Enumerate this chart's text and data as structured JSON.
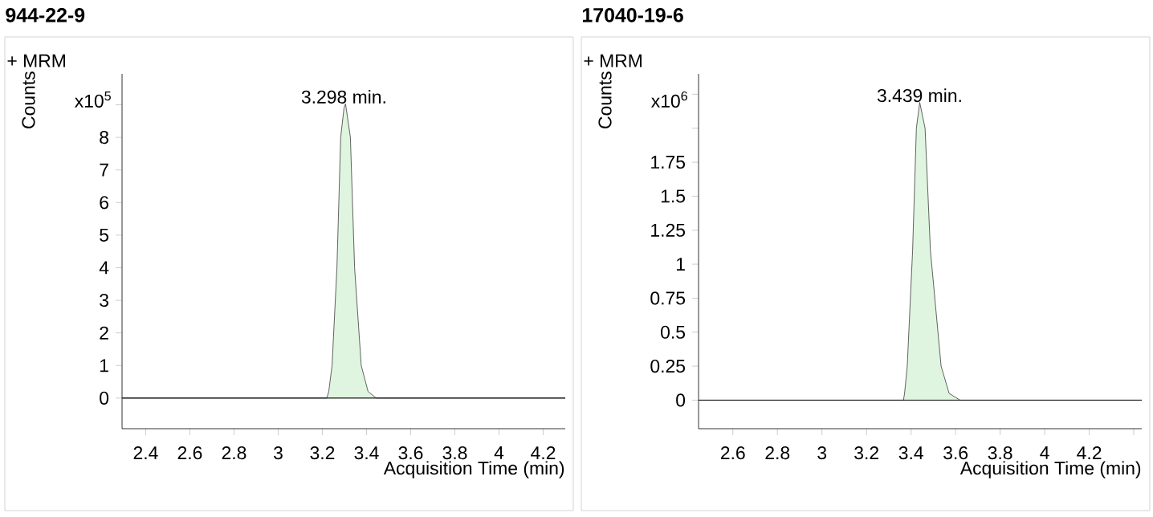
{
  "chart_data": [
    {
      "type": "area",
      "title": "944-22-9",
      "xlabel": "Acquisition Time (min)",
      "ylabel": "Counts",
      "color": "#dff5df",
      "x": [
        2.293,
        3.22,
        3.229,
        3.244,
        3.266,
        3.283,
        3.298,
        3.305,
        3.327,
        3.346,
        3.376,
        3.407,
        3.444,
        4.3
      ],
      "values": [
        0,
        0,
        0.2,
        1,
        4,
        8,
        8.9,
        9.03,
        8,
        4,
        1,
        0.2,
        0,
        0
      ],
      "xlim": [
        2.293,
        4.3
      ],
      "ylim": [
        -0.94,
        9.95
      ],
      "xticks": [
        2.4,
        2.6,
        2.8,
        3,
        3.2,
        3.4,
        3.6,
        3.8,
        4,
        4.2
      ],
      "yticks": [
        0,
        1,
        2,
        3,
        4,
        5,
        6,
        7,
        8,
        {
          "value": 9,
          "label": null
        }
      ],
      "annotations": [
        "+ MRM",
        "x10$^{5}$",
        {
          "text": "3.298 min.",
          "x": 3.298,
          "y": 9.03
        }
      ]
    },
    {
      "type": "area",
      "title": "17040-19-6",
      "xlabel": "Acquisition Time (min)",
      "ylabel": "Counts",
      "color": "#dff5df",
      "x": [
        2.446,
        3.366,
        3.371,
        3.383,
        3.407,
        3.424,
        3.439,
        3.463,
        3.487,
        3.535,
        3.571,
        3.62,
        4.436
      ],
      "values": [
        0,
        0,
        0.05,
        0.25,
        1.1,
        2,
        2.19,
        2,
        1.1,
        0.25,
        0.05,
        0,
        0
      ],
      "xlim": [
        2.446,
        4.436
      ],
      "ylim": [
        -0.21,
        2.4
      ],
      "xticks": [
        2.6,
        2.8,
        3,
        3.2,
        3.4,
        3.6,
        3.8,
        4,
        4.2,
        {
          "value": 4.4,
          "label": null
        }
      ],
      "yticks": [
        0,
        0.25,
        0.5,
        0.75,
        1,
        1.25,
        1.5,
        1.75,
        {
          "value": 2,
          "label": null
        },
        {
          "value": 2.25,
          "label": null
        }
      ],
      "annotations": [
        "+ MRM",
        "x10$^{6}$",
        {
          "text": "3.439 min.",
          "x": 3.439,
          "y": 2.19
        }
      ]
    }
  ]
}
